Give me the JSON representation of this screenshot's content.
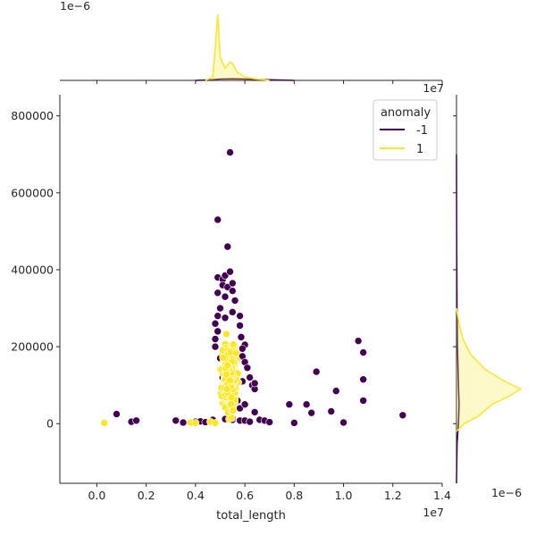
{
  "chart_data": {
    "type": "scatter",
    "xlabel": "total_length",
    "ylabel": "",
    "x_offset_label": "1e7",
    "xlim": [
      -0.15,
      1.4
    ],
    "ylim": [
      -155000,
      855000
    ],
    "x_ticks": [
      0.0,
      0.2,
      0.4,
      0.6,
      0.8,
      1.0,
      1.2,
      1.4
    ],
    "x_tick_labels": [
      "0.0",
      "0.2",
      "0.4",
      "0.6",
      "0.8",
      "1.0",
      "1.2",
      "1.4"
    ],
    "y_ticks": [
      0,
      200000,
      400000,
      600000,
      800000
    ],
    "y_tick_labels": [
      "0",
      "200000",
      "400000",
      "600000",
      "800000"
    ],
    "top_marginal_label": "1e−6",
    "right_marginal_label": "1e−6",
    "right_marginal_offset_label": "1e7",
    "legend": {
      "title": "anomaly",
      "placement": "upper-right",
      "entries": [
        {
          "label": "-1",
          "color": "#440154"
        },
        {
          "label": "1",
          "color": "#fde725"
        }
      ]
    },
    "series": [
      {
        "name": "-1",
        "color": "#440154",
        "points": [
          [
            0.03,
            2000
          ],
          [
            0.08,
            25000
          ],
          [
            0.14,
            5000
          ],
          [
            0.16,
            8000
          ],
          [
            0.32,
            8000
          ],
          [
            0.35,
            3000
          ],
          [
            0.4,
            5000
          ],
          [
            0.42,
            6000
          ],
          [
            0.44,
            4000
          ],
          [
            0.47,
            10000
          ],
          [
            0.52,
            12000
          ],
          [
            0.55,
            10000
          ],
          [
            0.58,
            8000
          ],
          [
            0.6,
            8000
          ],
          [
            0.62,
            5000
          ],
          [
            0.64,
            30000
          ],
          [
            0.66,
            10000
          ],
          [
            0.68,
            8000
          ],
          [
            0.7,
            4000
          ],
          [
            0.78,
            50000
          ],
          [
            0.8,
            2000
          ],
          [
            0.85,
            50000
          ],
          [
            0.87,
            28000
          ],
          [
            0.89,
            135000
          ],
          [
            0.95,
            32000
          ],
          [
            0.97,
            85000
          ],
          [
            1.0,
            3000
          ],
          [
            1.06,
            215000
          ],
          [
            1.08,
            185000
          ],
          [
            1.08,
            115000
          ],
          [
            1.08,
            60000
          ],
          [
            1.24,
            22000
          ],
          [
            0.49,
            530000
          ],
          [
            0.54,
            705000
          ],
          [
            0.53,
            460000
          ],
          [
            0.49,
            380000
          ],
          [
            0.51,
            375000
          ],
          [
            0.52,
            385000
          ],
          [
            0.54,
            395000
          ],
          [
            0.51,
            360000
          ],
          [
            0.53,
            355000
          ],
          [
            0.55,
            365000
          ],
          [
            0.55,
            345000
          ],
          [
            0.49,
            340000
          ],
          [
            0.52,
            330000
          ],
          [
            0.56,
            320000
          ],
          [
            0.5,
            300000
          ],
          [
            0.55,
            290000
          ],
          [
            0.49,
            280000
          ],
          [
            0.52,
            275000
          ],
          [
            0.58,
            280000
          ],
          [
            0.48,
            260000
          ],
          [
            0.58,
            255000
          ],
          [
            0.49,
            240000
          ],
          [
            0.585,
            225000
          ],
          [
            0.48,
            220000
          ],
          [
            0.6,
            205000
          ],
          [
            0.48,
            200000
          ],
          [
            0.59,
            195000
          ],
          [
            0.59,
            175000
          ],
          [
            0.6,
            160000
          ],
          [
            0.61,
            145000
          ],
          [
            0.62,
            120000
          ],
          [
            0.63,
            100000
          ],
          [
            0.64,
            90000
          ],
          [
            0.64,
            105000
          ],
          [
            0.59,
            110000
          ],
          [
            0.58,
            40000
          ],
          [
            0.55,
            15000
          ],
          [
            0.51,
            120000
          ],
          [
            0.5,
            170000
          ],
          [
            0.57,
            60000
          ],
          [
            0.6,
            50000
          ]
        ]
      },
      {
        "name": "1",
        "color": "#fde725",
        "cloud": {
          "x_range": [
            0.47,
            0.6
          ],
          "y_range": [
            0,
            310000
          ],
          "center": [
            0.54,
            120000
          ]
        },
        "points": [
          [
            0.03,
            2000
          ],
          [
            0.38,
            3000
          ],
          [
            0.4,
            2000
          ],
          [
            0.46,
            5000
          ],
          [
            0.48,
            2000
          ]
        ]
      }
    ],
    "marginal_x": {
      "series": [
        {
          "name": "-1",
          "color": "#440154",
          "x": [
            0.4,
            0.47,
            0.5,
            0.55,
            0.6,
            0.7,
            0.8
          ],
          "density": [
            0.0,
            0.01,
            0.02,
            0.025,
            0.02,
            0.01,
            0.0
          ]
        },
        {
          "name": "1",
          "color": "#fde725",
          "x": [
            0.44,
            0.47,
            0.48,
            0.49,
            0.5,
            0.52,
            0.54,
            0.55,
            0.57,
            0.6,
            0.65,
            0.7
          ],
          "density": [
            0.0,
            0.05,
            0.5,
            1.0,
            0.35,
            0.18,
            0.28,
            0.25,
            0.12,
            0.05,
            0.02,
            0.0
          ]
        }
      ]
    },
    "marginal_y": {
      "series": [
        {
          "name": "-1",
          "color": "#440154",
          "y": [
            -155000,
            -50000,
            0,
            50000,
            100000,
            200000,
            300000,
            500000,
            700000
          ],
          "density": [
            0.0,
            0.01,
            0.03,
            0.04,
            0.03,
            0.015,
            0.008,
            0.003,
            0.0
          ]
        },
        {
          "name": "1",
          "color": "#fde725",
          "y": [
            -20000,
            0,
            20000,
            50000,
            70000,
            90000,
            110000,
            140000,
            180000,
            220000,
            260000,
            300000
          ],
          "density": [
            0.0,
            0.12,
            0.35,
            0.55,
            0.8,
            1.0,
            0.75,
            0.45,
            0.22,
            0.1,
            0.04,
            0.0
          ]
        }
      ]
    }
  }
}
